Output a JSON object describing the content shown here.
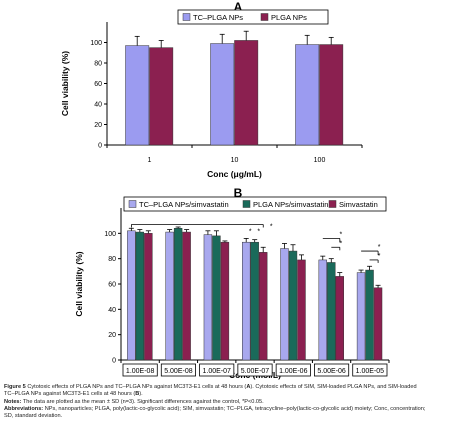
{
  "chart_data": [
    {
      "panel": "A",
      "type": "bar",
      "title": "",
      "xlabel": "Conc (μg/mL)",
      "ylabel": "Cell viability (%)",
      "categories": [
        "1",
        "10",
        "100"
      ],
      "ylim": [
        0,
        120
      ],
      "yticks": [
        0,
        20,
        40,
        60,
        80,
        100
      ],
      "grid": false,
      "legend": "top-right",
      "series": [
        {
          "name": "TC–PLGA NPs",
          "color": "#9b9bf0",
          "values": [
            97,
            99,
            98
          ],
          "err": [
            9,
            9,
            9
          ]
        },
        {
          "name": "PLGA NPs",
          "color": "#8b2050",
          "values": [
            95,
            102,
            98
          ],
          "err": [
            7,
            9,
            7
          ]
        }
      ]
    },
    {
      "panel": "B",
      "type": "bar",
      "title": "",
      "xlabel": "Conc (mol/L)",
      "ylabel": "Cell viability (%)",
      "categories": [
        "1.00E-08",
        "5.00E-08",
        "1.00E-07",
        "5.00E-07",
        "1.00E-06",
        "5.00E-06",
        "1.00E-05"
      ],
      "ylim": [
        0,
        120
      ],
      "yticks": [
        0,
        20,
        40,
        60,
        80,
        100
      ],
      "grid": false,
      "legend": "top",
      "significance_marker": "*",
      "series": [
        {
          "name": "TC–PLGA NPs/simvastatin",
          "color": "#a8a8ee",
          "values": [
            102,
            101,
            99,
            93,
            88,
            79,
            69
          ],
          "err": [
            2,
            2,
            3,
            3,
            4,
            3,
            2
          ]
        },
        {
          "name": "PLGA NPs/simvastatin",
          "color": "#1a6a5a",
          "values": [
            101,
            104,
            98,
            93,
            86,
            77,
            71
          ],
          "err": [
            2,
            1,
            4,
            2,
            5,
            3,
            3
          ]
        },
        {
          "name": "Simvastatin",
          "color": "#8b2050",
          "values": [
            100,
            101,
            93,
            85,
            79,
            66,
            57
          ],
          "err": [
            2,
            2,
            1,
            4,
            4,
            3,
            2
          ]
        }
      ]
    }
  ],
  "caption": {
    "figure_label": "Figure 5",
    "figure_text": " Cytotoxic effects of PLGA NPs and TC–PLGA NPs against MC3T3-E1 cells at 48 hours (",
    "figure_text_a": "A",
    "figure_text_mid": "). Cytotoxic effects of SIM, SIM-loaded PLGA NPs, and SIM-loaded",
    "figure_text_2": "TC–PLGA NPs against MC3T3-E1 cells at 48 hours (",
    "figure_text_b": "B",
    "figure_text_end": ").",
    "notes_label": "Notes:",
    "notes_text": " The data are plotted as the mean ± SD (n=3). Significant differences against the control, *P<0.05.",
    "abbr_label": "Abbreviations:",
    "abbr_text": " NPs, nanoparticles; PLGA, poly(lactic-co-glycolic acid); SIM, simvastatin; TC–PLGA, tetracycline–poly(lactic-co-glycolic acid) moiety; Conc, concentration;",
    "abbr_text_2": "SD, standard deviation."
  }
}
